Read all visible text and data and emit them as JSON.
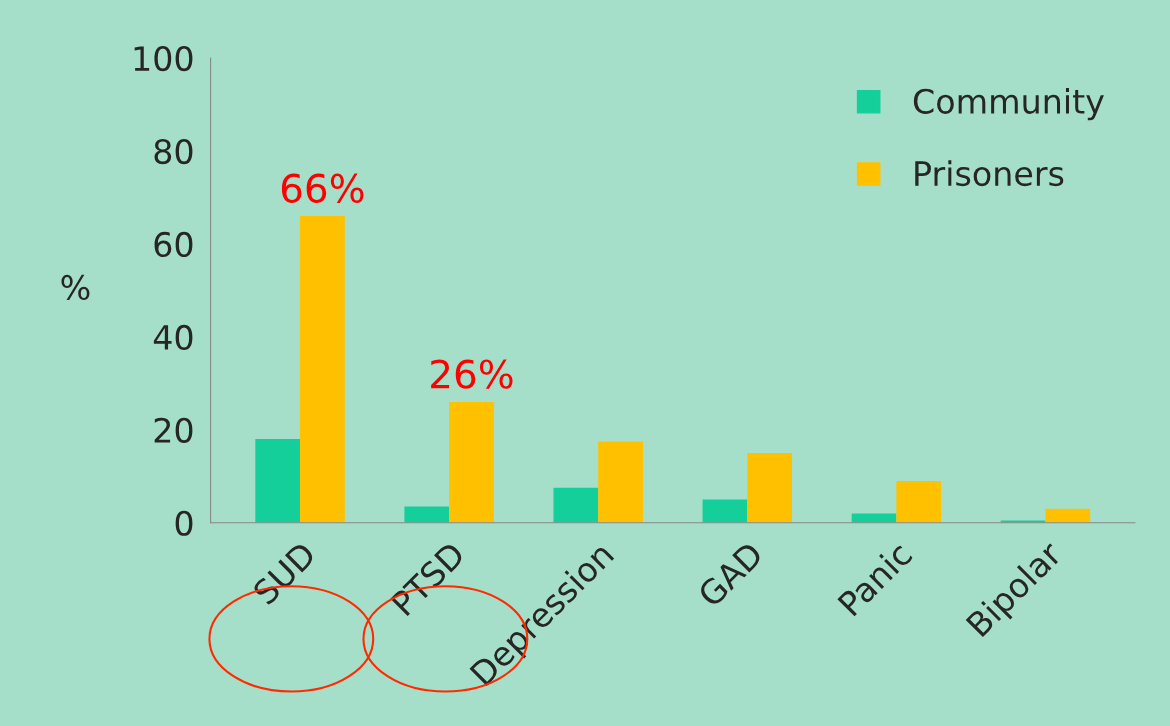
{
  "chart_data": {
    "type": "bar",
    "ylabel": "%",
    "categories": [
      "SUD",
      "PTSD",
      "Depression",
      "GAD",
      "Panic",
      "Bipolar"
    ],
    "series": [
      {
        "name": "Community",
        "color": "#14cf9a",
        "values": [
          18,
          3.5,
          7.5,
          5,
          2,
          0.5
        ]
      },
      {
        "name": "Prisoners",
        "color": "#ffc000",
        "values": [
          66,
          26,
          17.5,
          15,
          9,
          3
        ],
        "value_labels": [
          "66%",
          "26%",
          null,
          null,
          null,
          null
        ]
      }
    ],
    "ylim": [
      0,
      100
    ],
    "yticks": [
      0,
      20,
      40,
      60,
      80,
      100
    ],
    "grid": false,
    "legend": "top right"
  }
}
